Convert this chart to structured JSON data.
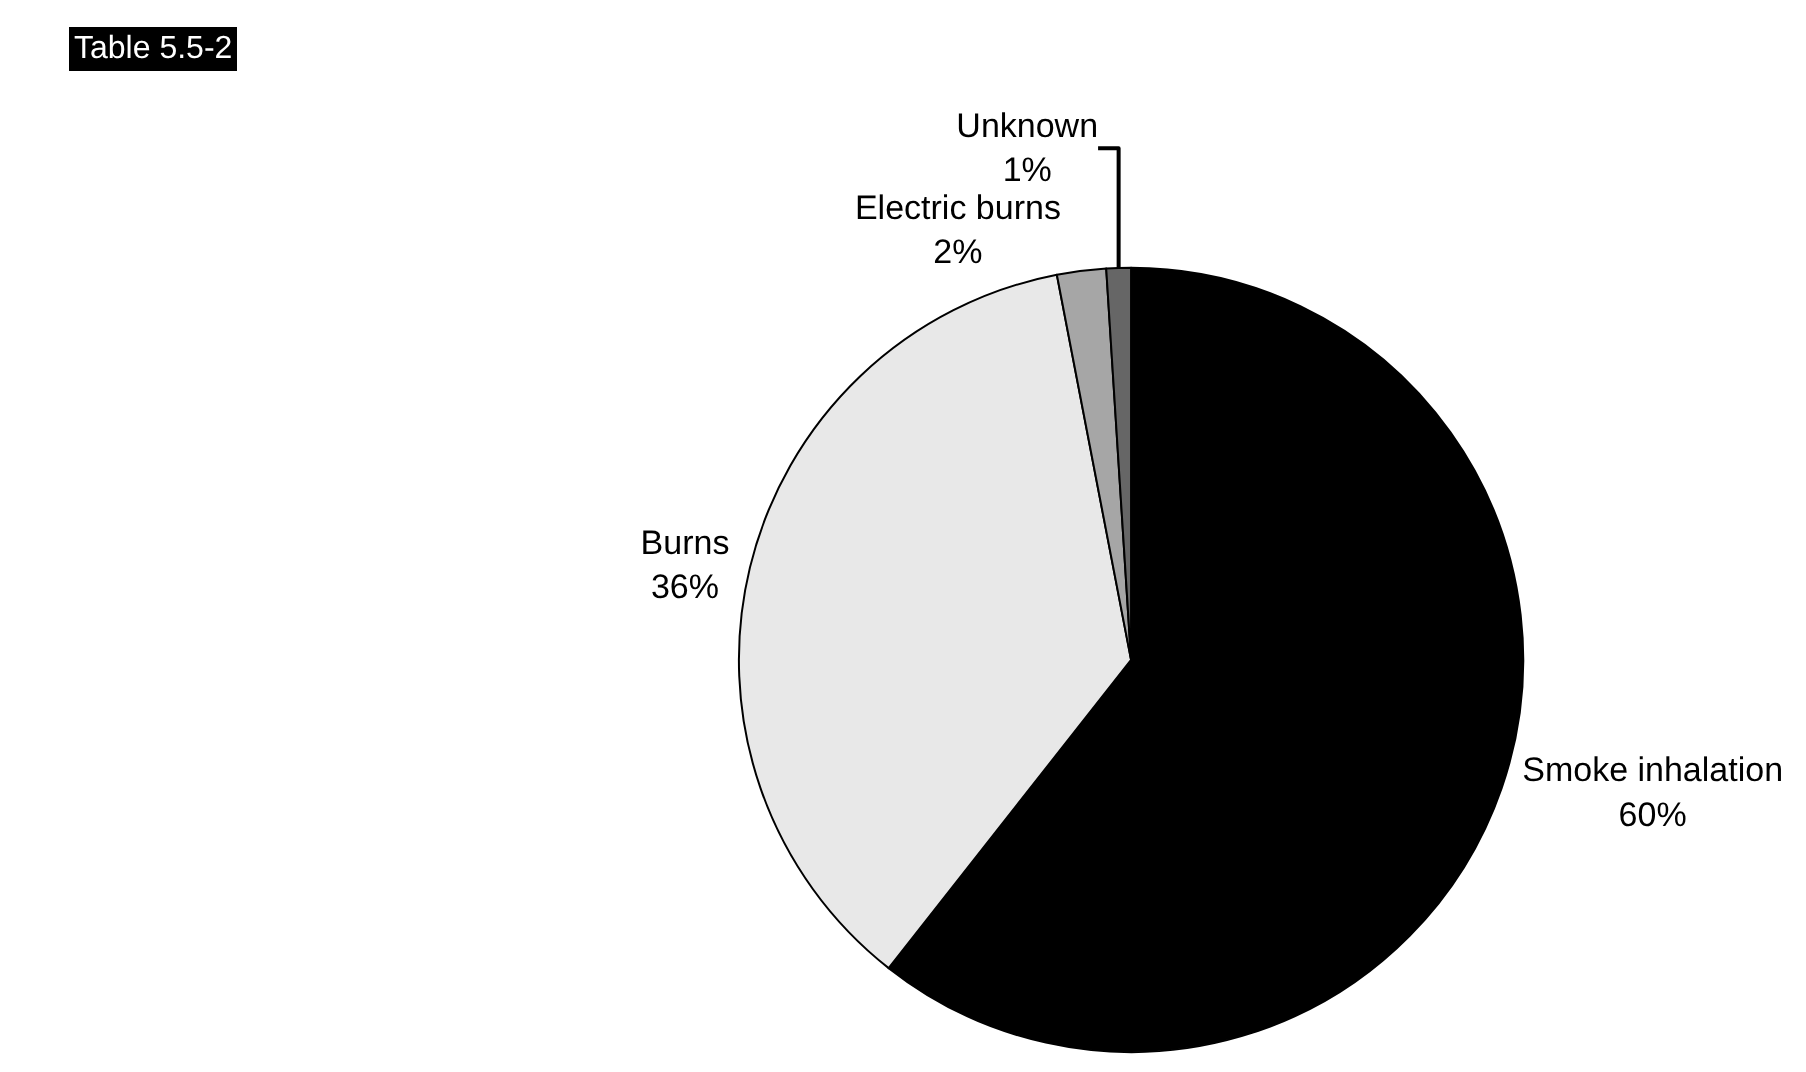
{
  "chart_data": {
    "type": "pie",
    "title": "Table 5.5-2",
    "categories": [
      "Smoke inhalation",
      "Burns",
      "Electric burns",
      "Unknown"
    ],
    "values": [
      60,
      36,
      2,
      1
    ],
    "colors": [
      "#000000",
      "#e8e8e8",
      "#a6a6a6",
      "#666666"
    ],
    "value_labels": [
      "60%",
      "36%",
      "2%",
      "1%"
    ],
    "legend": false
  }
}
